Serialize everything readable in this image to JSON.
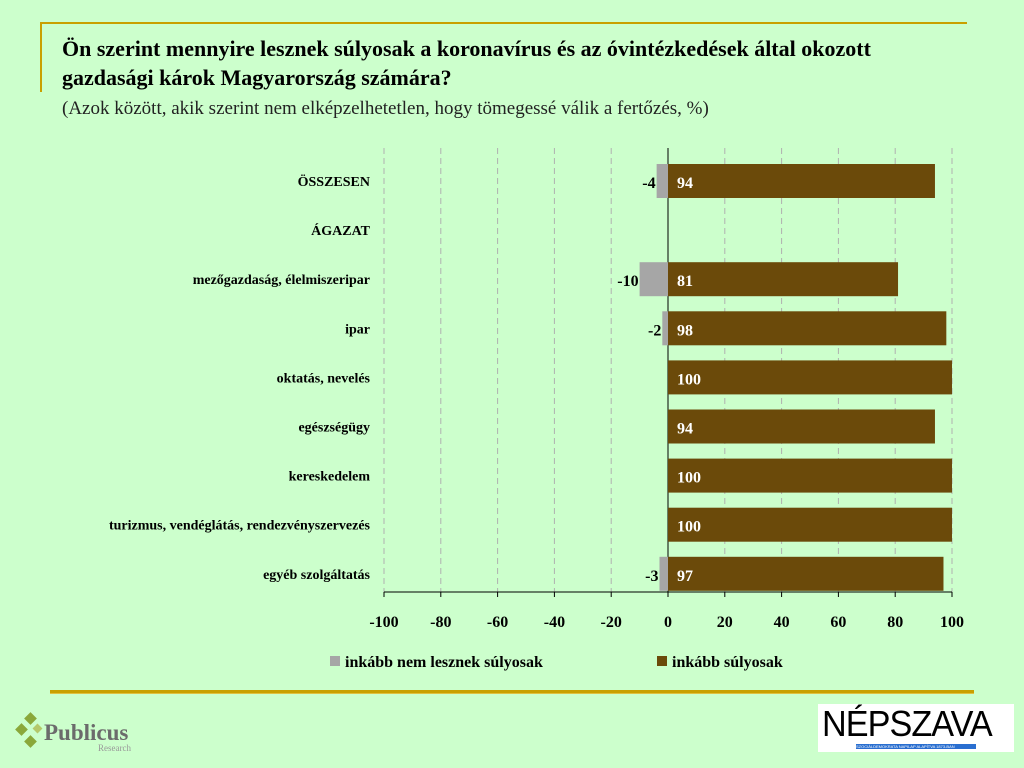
{
  "header": {
    "title": "Ön szerint mennyire lesznek súlyosak a koronavírus és az óvintézkedések által okozott gazdasági károk Magyarország számára?",
    "subtitle": "(Azok között, akik szerint nem elképzelhetetlen, hogy tömegessé válik a fertőzés, %)"
  },
  "chart_data": {
    "type": "bar",
    "orientation": "horizontal-diverging",
    "title": "Ön szerint mennyire lesznek súlyosak a koronavírus és az óvintézkedések által okozott gazdasági károk Magyarország számára?",
    "categories": [
      "ÖSSZESEN",
      "ÁGAZAT",
      "mezőgazdaság, élelmiszeripar",
      "ipar",
      "oktatás, nevelés",
      "egészségügy",
      "kereskedelem",
      "turizmus, vendéglátás, rendezvényszervezés",
      "egyéb szolgáltatás"
    ],
    "category_bold": [
      true,
      true,
      false,
      false,
      false,
      false,
      false,
      false,
      false
    ],
    "series": [
      {
        "name": "inkább nem lesznek súlyosak",
        "color": "#a6a6a6",
        "values": [
          -4,
          null,
          -10,
          -2,
          0,
          0,
          0,
          0,
          -3
        ]
      },
      {
        "name": "inkább súlyosak",
        "color": "#6b4a0a",
        "values": [
          94,
          null,
          81,
          98,
          100,
          94,
          100,
          100,
          97
        ]
      }
    ],
    "xlim": [
      -100,
      100
    ],
    "xticks": [
      -100,
      -80,
      -60,
      -40,
      -20,
      0,
      20,
      40,
      60,
      80,
      100
    ],
    "tick_labels": [
      "-100",
      "-80",
      "-60",
      "-40",
      "-20",
      "0",
      "20",
      "40",
      "60",
      "80",
      "100"
    ],
    "grid": true,
    "legend": "bottom"
  },
  "logos": {
    "publicus": "Publicus",
    "publicus_sub": "Research",
    "nepszava": "NÉPSZAVA",
    "nepszava_sub": "SZOCIÁLDEMOKRATA NAPILAP ALAPÍTVA 1873-BAN"
  }
}
